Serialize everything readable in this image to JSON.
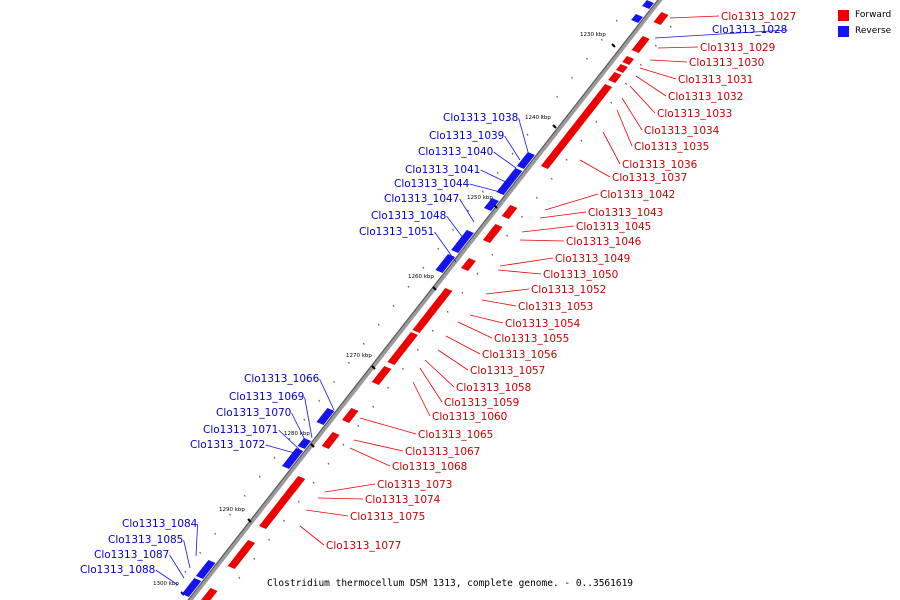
{
  "colors": {
    "forward": "#ee0000",
    "reverse": "#1414ee",
    "axis": "#888888"
  },
  "legend": {
    "forward_label": "Forward",
    "reverse_label": "Reverse"
  },
  "caption": "Clostridium thermocellum DSM 1313, complete genome. - 0..3561619",
  "ticks": [
    "1230 kbp",
    "1240 kbp",
    "1250 kbp",
    "1260 kbp",
    "1270 kbp",
    "1280 kbp",
    "1290 kbp",
    "1300 kbp"
  ],
  "forward_genes": [
    "Clo1313_1027",
    "Clo1313_1029",
    "Clo1313_1030",
    "Clo1313_1031",
    "Clo1313_1032",
    "Clo1313_1033",
    "Clo1313_1034",
    "Clo1313_1035",
    "Clo1313_1036",
    "Clo1313_1037",
    "Clo1313_1042",
    "Clo1313_1043",
    "Clo1313_1045",
    "Clo1313_1046",
    "Clo1313_1049",
    "Clo1313_1050",
    "Clo1313_1052",
    "Clo1313_1053",
    "Clo1313_1054",
    "Clo1313_1055",
    "Clo1313_1056",
    "Clo1313_1057",
    "Clo1313_1058",
    "Clo1313_1059",
    "Clo1313_1060",
    "Clo1313_1065",
    "Clo1313_1067",
    "Clo1313_1068",
    "Clo1313_1073",
    "Clo1313_1074",
    "Clo1313_1075",
    "Clo1313_1077"
  ],
  "reverse_genes": [
    "Clo1313_1028",
    "Clo1313_1038",
    "Clo1313_1039",
    "Clo1313_1040",
    "Clo1313_1041",
    "Clo1313_1044",
    "Clo1313_1047",
    "Clo1313_1048",
    "Clo1313_1051",
    "Clo1313_1066",
    "Clo1313_1069",
    "Clo1313_1070",
    "Clo1313_1071",
    "Clo1313_1072",
    "Clo1313_1084",
    "Clo1313_1085",
    "Clo1313_1087",
    "Clo1313_1088"
  ]
}
